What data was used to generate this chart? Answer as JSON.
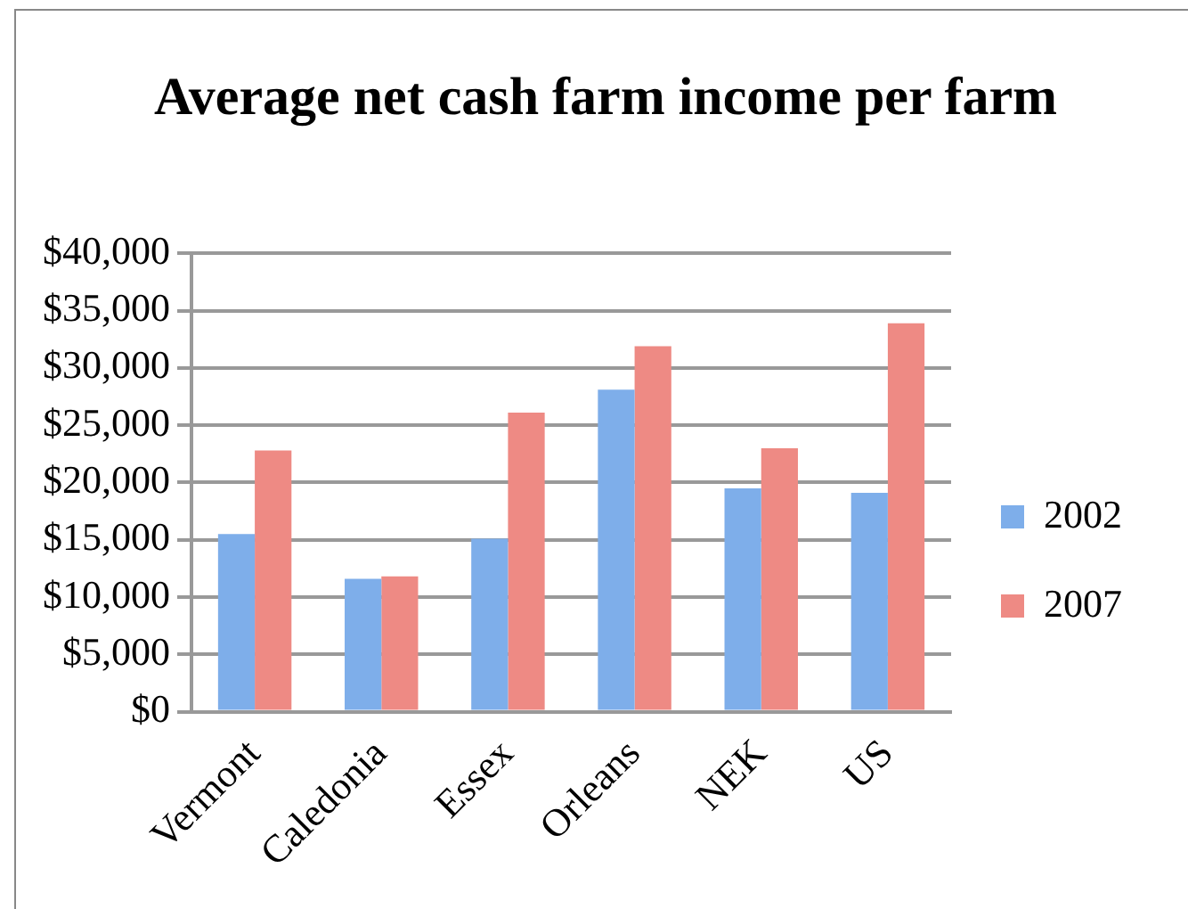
{
  "chart_data": {
    "type": "bar",
    "title": "Average net cash farm income per farm",
    "categories": [
      "Vermont",
      "Caledonia",
      "Essex",
      "Orleans",
      "NEK",
      "US"
    ],
    "series": [
      {
        "name": "2002",
        "color": "#7eaeea",
        "values": [
          15500,
          11600,
          15100,
          28100,
          19500,
          19100
        ]
      },
      {
        "name": "2007",
        "color": "#ee8a84",
        "values": [
          22800,
          11800,
          26100,
          31900,
          23000,
          33900
        ]
      }
    ],
    "ylim": [
      0,
      40000
    ],
    "yticks": [
      {
        "value": 0,
        "label": "$0"
      },
      {
        "value": 5000,
        "label": "$5,000"
      },
      {
        "value": 10000,
        "label": "$10,000"
      },
      {
        "value": 15000,
        "label": "$15,000"
      },
      {
        "value": 20000,
        "label": "$20,000"
      },
      {
        "value": 25000,
        "label": "$25,000"
      },
      {
        "value": 30000,
        "label": "$30,000"
      },
      {
        "value": 35000,
        "label": "$35,000"
      },
      {
        "value": 40000,
        "label": "$40,000"
      }
    ],
    "grid": "y",
    "legend": "right"
  }
}
